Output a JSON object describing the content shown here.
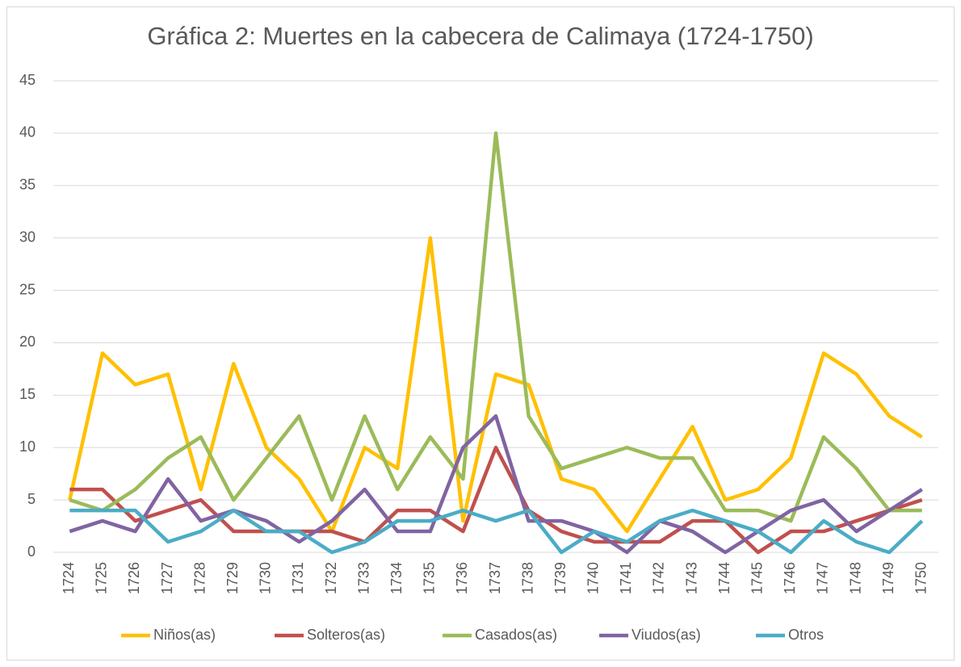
{
  "chart_data": {
    "type": "line",
    "title": "Gráfica 2: Muertes en la cabecera de Calimaya (1724-1750)",
    "categories": [
      "1724",
      "1725",
      "1726",
      "1727",
      "1728",
      "1729",
      "1730",
      "1731",
      "1732",
      "1733",
      "1734",
      "1735",
      "1736",
      "1737",
      "1738",
      "1739",
      "1740",
      "1741",
      "1742",
      "1743",
      "1744",
      "1745",
      "1746",
      "1747",
      "1748",
      "1749",
      "1750"
    ],
    "series": [
      {
        "name": "Niños(as)",
        "color": "#FFC000",
        "values": [
          5,
          19,
          16,
          17,
          6,
          18,
          10,
          7,
          2,
          10,
          8,
          30,
          3,
          17,
          16,
          7,
          6,
          2,
          7,
          12,
          5,
          6,
          9,
          19,
          17,
          13,
          11
        ]
      },
      {
        "name": "Solteros(as)",
        "color": "#C0504D",
        "values": [
          6,
          6,
          3,
          4,
          5,
          2,
          2,
          2,
          2,
          1,
          4,
          4,
          2,
          10,
          4,
          2,
          1,
          1,
          1,
          3,
          3,
          0,
          2,
          2,
          3,
          4,
          5
        ]
      },
      {
        "name": "Casados(as)",
        "color": "#9BBB59",
        "values": [
          5,
          4,
          6,
          9,
          11,
          5,
          9,
          13,
          5,
          13,
          6,
          11,
          7,
          40,
          13,
          8,
          9,
          10,
          9,
          9,
          4,
          4,
          3,
          11,
          8,
          4,
          4
        ]
      },
      {
        "name": "Viudos(as)",
        "color": "#8064A2",
        "values": [
          2,
          3,
          2,
          7,
          3,
          4,
          3,
          1,
          3,
          6,
          2,
          2,
          10,
          13,
          3,
          3,
          2,
          0,
          3,
          2,
          0,
          2,
          4,
          5,
          2,
          4,
          6
        ]
      },
      {
        "name": "Otros",
        "color": "#4BACC6",
        "values": [
          4,
          4,
          4,
          1,
          2,
          4,
          2,
          2,
          0,
          1,
          3,
          3,
          4,
          3,
          4,
          0,
          2,
          1,
          3,
          4,
          3,
          2,
          0,
          3,
          1,
          0,
          3
        ]
      }
    ],
    "ylim": [
      0,
      45
    ],
    "yticks": [
      0,
      5,
      10,
      15,
      20,
      25,
      30,
      35,
      40,
      45
    ],
    "grid": true,
    "legend": "bottom"
  }
}
